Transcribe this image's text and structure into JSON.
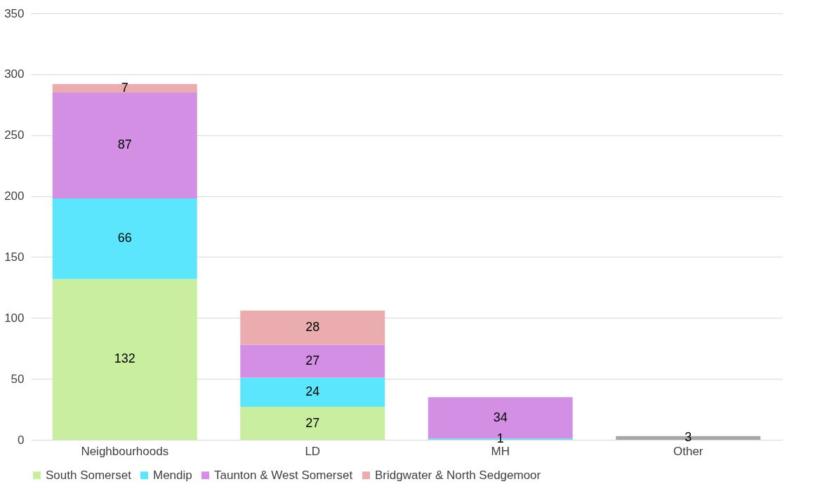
{
  "chart_data": {
    "type": "bar",
    "stacked": true,
    "categories": [
      "Neighbourhoods",
      "LD",
      "MH",
      "Other"
    ],
    "series": [
      {
        "name": "South Somerset",
        "color": "#c9eea0",
        "values": [
          132,
          27,
          null,
          null
        ]
      },
      {
        "name": "Mendip",
        "color": "#5ce6fd",
        "values": [
          66,
          24,
          1,
          null
        ]
      },
      {
        "name": "Taunton & West Somerset",
        "color": "#d38fe3",
        "values": [
          87,
          27,
          34,
          null
        ]
      },
      {
        "name": "Bridgwater & North Sedgemoor",
        "color": "#eaacaf",
        "values": [
          7,
          28,
          null,
          null
        ]
      },
      {
        "color": "#a6a6a6",
        "values": [
          null,
          null,
          null,
          3
        ]
      }
    ],
    "ylim": [
      0,
      350
    ],
    "yticks": [
      0,
      50,
      100,
      150,
      200,
      250,
      300,
      350
    ],
    "grid": "y",
    "legend": "bottom",
    "data_labels": true
  }
}
